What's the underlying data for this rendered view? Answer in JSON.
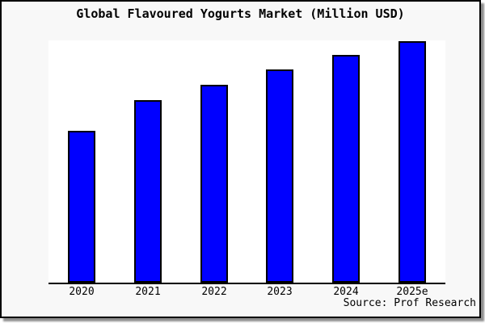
{
  "window": {
    "background": "#ffffff",
    "card_background": "#f8f8f8",
    "border_color": "#000000",
    "shadow_color": "#8f8f8f"
  },
  "chart_data": {
    "type": "bar",
    "title": "Global Flavoured Yogurts Market (Million USD)",
    "categories": [
      "2020",
      "2021",
      "2022",
      "2023",
      "2024",
      "2025e"
    ],
    "values": [
      62.9,
      75.6,
      81.9,
      88.3,
      94.3,
      100
    ],
    "value_note": "chart shows no numeric y-axis; values estimated as percent of tallest bar (2025e = 100)",
    "xlabel": "",
    "ylabel": "",
    "ylim": [
      0,
      100
    ],
    "grid": false,
    "legend": false,
    "plot_bg": "#ffffff",
    "bar_fill": "#0000ff",
    "bar_border": "#000000",
    "axis_color": "#000000"
  },
  "source": {
    "label": "Source: Prof Research"
  }
}
